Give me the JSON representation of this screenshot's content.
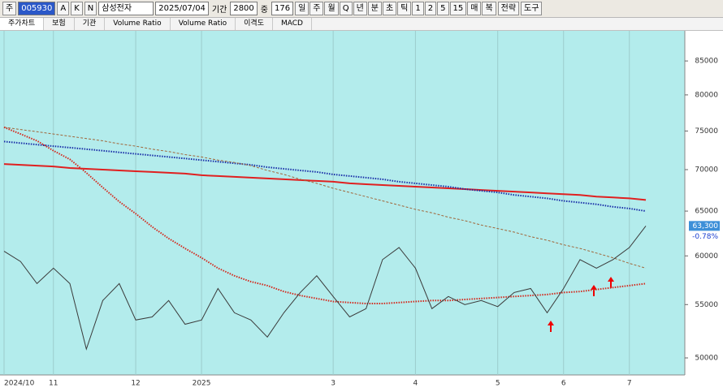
{
  "toolbar": {
    "market": "주",
    "code": "005930",
    "options": [
      "A",
      "K",
      "N"
    ],
    "stock_name": "삼성전자",
    "date": "2025/07/04",
    "period_label": "기간",
    "period": "2800",
    "zoom_label": "중",
    "zoom": "176",
    "intervals": [
      "일",
      "주",
      "월",
      "Q",
      "년",
      "분",
      "초",
      "틱",
      "1",
      "2",
      "5",
      "15",
      "매",
      "복"
    ],
    "strategy": "전략",
    "tools": "도구"
  },
  "tabs": [
    "주가차트",
    "보험",
    "기관",
    "Volume Ratio",
    "Volume Ratio",
    "이격도",
    "MACD"
  ],
  "chart_data": {
    "type": "line",
    "log_scale": true,
    "xgrid": true,
    "categories": [
      "2024/10",
      null,
      null,
      "11",
      null,
      null,
      null,
      null,
      "12",
      null,
      null,
      null,
      "2025",
      null,
      null,
      null,
      null,
      null,
      null,
      null,
      "3",
      null,
      null,
      null,
      null,
      "4",
      null,
      null,
      null,
      null,
      "5",
      null,
      null,
      null,
      "6",
      null,
      null,
      null,
      "7",
      null
    ],
    "ylim": [
      48500,
      89700
    ],
    "yticks": [
      50000,
      55000,
      60000,
      65000,
      70000,
      75000,
      80000,
      85000
    ],
    "price_label": "63,300",
    "change_label": "-0.78%",
    "series": [
      {
        "color": "#e02020",
        "style": "solid",
        "width": 2,
        "values": [
          70700,
          70600,
          70500,
          70400,
          70200,
          70100,
          70000,
          69900,
          69800,
          69700,
          69600,
          69500,
          69300,
          69200,
          69100,
          69000,
          68900,
          68800,
          68700,
          68600,
          68500,
          68300,
          68200,
          68100,
          68000,
          67900,
          67800,
          67700,
          67600,
          67500,
          67400,
          67300,
          67200,
          67100,
          67000,
          66900,
          66700,
          66600,
          66500,
          66300
        ]
      },
      {
        "color": "#1a2fa8",
        "style": "dotted",
        "width": 2,
        "values": [
          73600,
          73400,
          73200,
          73000,
          72800,
          72600,
          72400,
          72200,
          72000,
          71800,
          71600,
          71400,
          71200,
          71000,
          70800,
          70600,
          70300,
          70100,
          69900,
          69700,
          69400,
          69200,
          69000,
          68800,
          68500,
          68300,
          68100,
          67900,
          67600,
          67400,
          67200,
          66900,
          66700,
          66500,
          66200,
          66000,
          65800,
          65500,
          65300,
          65000
        ]
      },
      {
        "color": "#a0663a",
        "style": "dashed",
        "width": 1,
        "values": [
          75500,
          75200,
          74900,
          74600,
          74300,
          74000,
          73700,
          73300,
          73000,
          72600,
          72300,
          71900,
          71600,
          71200,
          70900,
          70500,
          69900,
          69400,
          68800,
          68300,
          67700,
          67200,
          66700,
          66200,
          65700,
          65200,
          64800,
          64300,
          63900,
          63400,
          63000,
          62600,
          62100,
          61700,
          61200,
          60800,
          60300,
          59800,
          59200,
          58700
        ]
      },
      {
        "color": "#d42a1e",
        "style": "dotted",
        "width": 2,
        "values": [
          75500,
          74600,
          73700,
          72400,
          71300,
          69600,
          67800,
          66100,
          64700,
          63200,
          61900,
          60800,
          59800,
          58700,
          57900,
          57300,
          56900,
          56300,
          55900,
          55600,
          55300,
          55200,
          55100,
          55100,
          55200,
          55300,
          55400,
          55400,
          55500,
          55600,
          55700,
          55800,
          55900,
          56000,
          56200,
          56300,
          56500,
          56700,
          56900,
          57100
        ]
      },
      {
        "color": "#3a3a3a",
        "style": "solid",
        "width": 1,
        "values": [
          60500,
          59400,
          57100,
          58700,
          57100,
          50800,
          55400,
          57100,
          53500,
          53800,
          55400,
          53100,
          53500,
          56600,
          54200,
          53500,
          51900,
          54200,
          56200,
          57900,
          55800,
          53800,
          54600,
          59600,
          60900,
          58700,
          54600,
          55800,
          55000,
          55400,
          54800,
          56200,
          56600,
          54200,
          56600,
          59600,
          58700,
          59600,
          60900,
          63300
        ]
      }
    ]
  }
}
